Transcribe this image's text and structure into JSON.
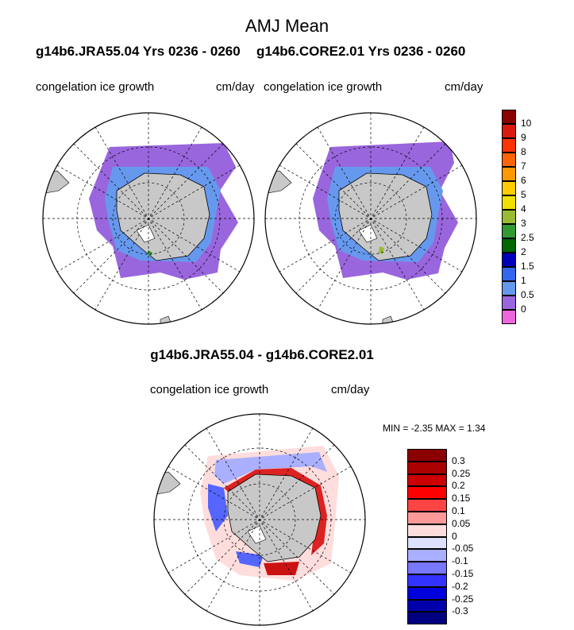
{
  "figure": {
    "title": "AMJ Mean",
    "left_run": "g14b6.JRA55.04  Yrs 0236 - 0260",
    "right_run": "g14b6.CORE2.01  Yrs 0236 - 0260",
    "diff_title": "g14b6.JRA55.04 - g14b6.CORE2.01"
  },
  "panels": {
    "top_left": {
      "variable": "congelation ice growth",
      "units": "cm/day"
    },
    "top_right": {
      "variable": "congelation ice growth",
      "units": "cm/day"
    },
    "bottom": {
      "variable": "congelation ice growth",
      "units": "cm/day",
      "min_label": "MIN =",
      "min_value": "-2.35",
      "max_label": "MAX =",
      "max_value": "1.34"
    }
  },
  "colorbar_top": {
    "labels": [
      "10",
      "9",
      "8",
      "7",
      "6",
      "5",
      "4",
      "3",
      "2.5",
      "2",
      "1.5",
      "1",
      "0.5",
      "0"
    ],
    "colors": [
      "#8b0000",
      "#d91a0f",
      "#ff3300",
      "#ff6600",
      "#ff9900",
      "#ffcc00",
      "#f0e000",
      "#99bb33",
      "#339933",
      "#006600",
      "#0000bb",
      "#3366ee",
      "#6699ee",
      "#9966dd",
      "#ee66dd"
    ]
  },
  "colorbar_diff": {
    "labels": [
      "0.3",
      "0.25",
      "0.2",
      "0.15",
      "0.1",
      "0.05",
      "0",
      "-0.05",
      "-0.1",
      "-0.15",
      "-0.2",
      "-0.25",
      "-0.3"
    ],
    "colors": [
      "#8b0000",
      "#aa0000",
      "#cc0000",
      "#ff0000",
      "#ff4444",
      "#ff9999",
      "#ffdddd",
      "#dde0ff",
      "#aab0ff",
      "#7777ff",
      "#3333ff",
      "#0000dd",
      "#0000aa",
      "#000080"
    ]
  },
  "colors": {
    "land": "#c8c8c8",
    "ice_purple": "#9966dd",
    "ice_blue": "#6699ee"
  }
}
